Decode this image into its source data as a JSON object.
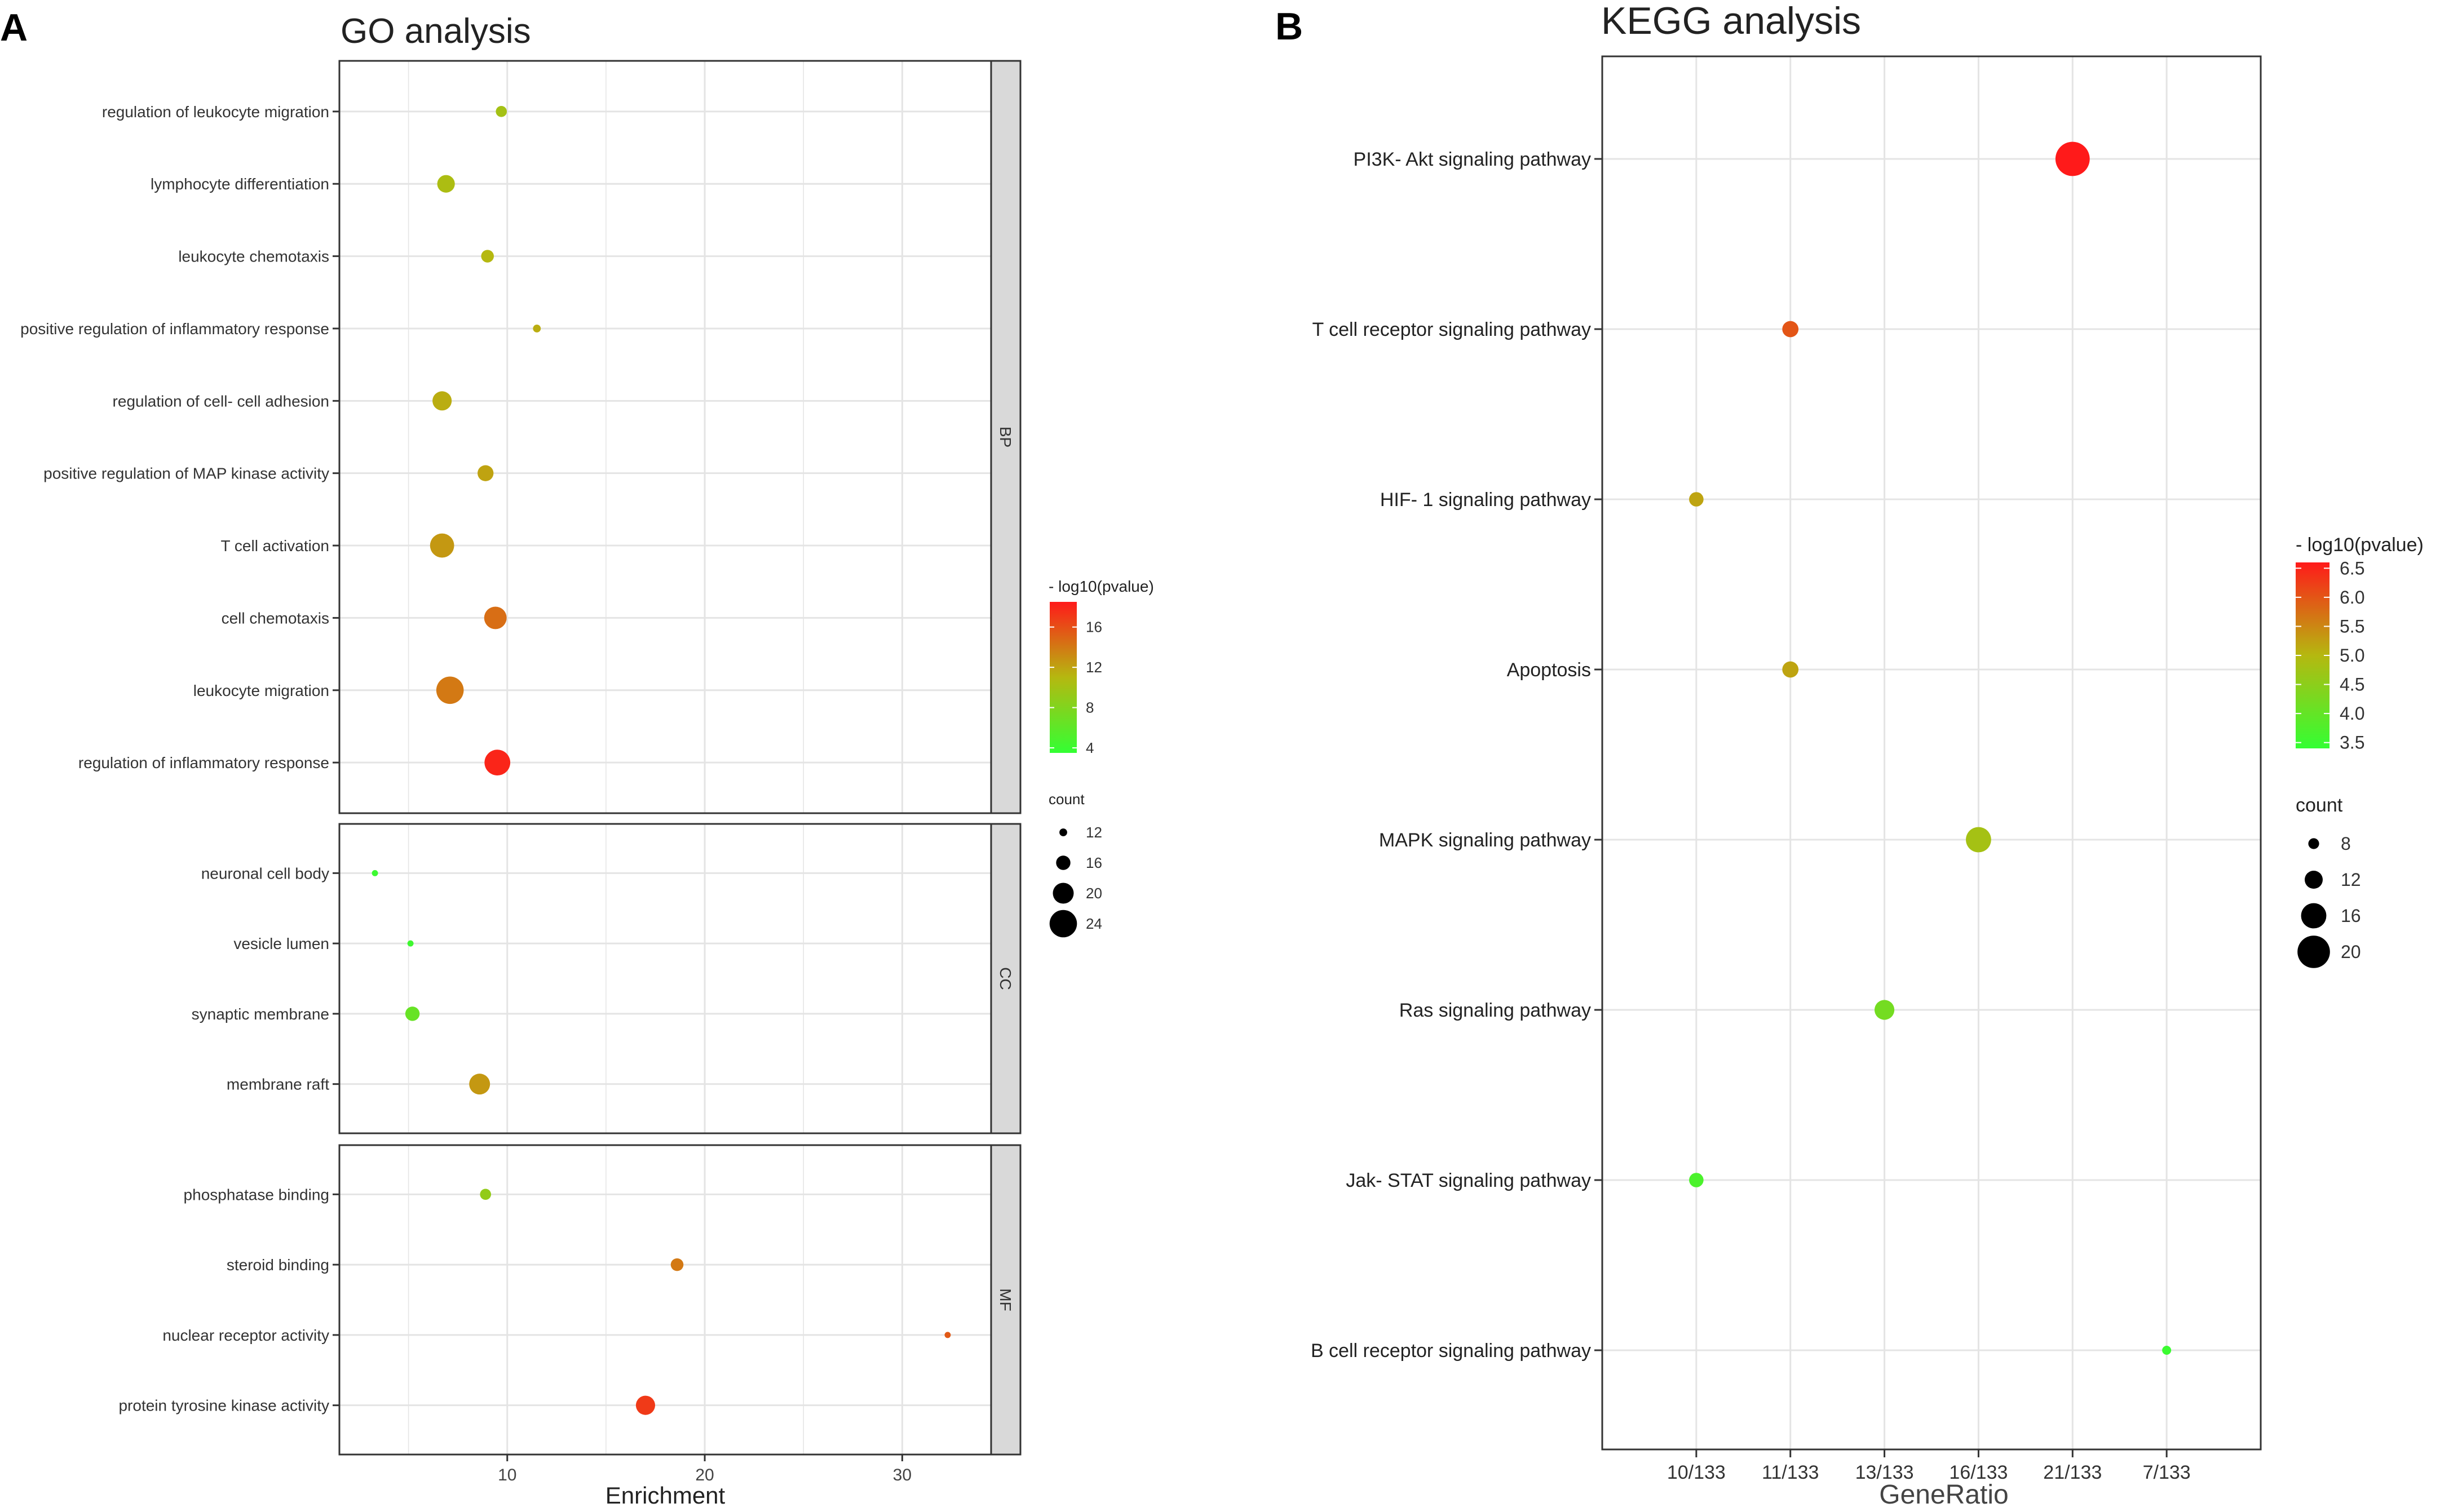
{
  "chart_data": [
    {
      "type": "scatter",
      "panel_label": "A",
      "title": "GO analysis",
      "xlabel": "Enrichment",
      "ylabel": "",
      "xlim": [
        1.5,
        34.5
      ],
      "x_ticks": [
        10,
        20,
        30
      ],
      "grid": true,
      "facets": [
        {
          "strip": "BP",
          "terms": [
            {
              "label": "regulation of leukocyte migration",
              "enrichment": 9.7,
              "count": 14,
              "log10p": 10.0
            },
            {
              "label": "lymphocyte differentiation",
              "enrichment": 6.9,
              "count": 18,
              "log10p": 10.5
            },
            {
              "label": "leukocyte chemotaxis",
              "enrichment": 9.0,
              "count": 15,
              "log10p": 11.0
            },
            {
              "label": "positive regulation of inflammatory response",
              "enrichment": 11.5,
              "count": 12,
              "log10p": 11.5
            },
            {
              "label": "regulation of cell- cell adhesion",
              "enrichment": 6.7,
              "count": 19,
              "log10p": 11.5
            },
            {
              "label": "positive regulation of MAP kinase activity",
              "enrichment": 8.9,
              "count": 17,
              "log10p": 12.0
            },
            {
              "label": "T cell activation",
              "enrichment": 6.7,
              "count": 22,
              "log10p": 12.5
            },
            {
              "label": "cell chemotaxis",
              "enrichment": 9.4,
              "count": 21,
              "log10p": 14.5
            },
            {
              "label": "leukocyte migration",
              "enrichment": 7.1,
              "count": 24,
              "log10p": 14.0
            },
            {
              "label": "regulation of inflammatory response",
              "enrichment": 9.5,
              "count": 23,
              "log10p": 18.0
            }
          ]
        },
        {
          "strip": "CC",
          "terms": [
            {
              "label": "neuronal cell body",
              "enrichment": 3.3,
              "count": 11,
              "log10p": 4.0
            },
            {
              "label": "vesicle lumen",
              "enrichment": 5.1,
              "count": 11,
              "log10p": 4.2
            },
            {
              "label": "synaptic membrane",
              "enrichment": 5.2,
              "count": 16,
              "log10p": 6.5
            },
            {
              "label": "membrane raft",
              "enrichment": 8.6,
              "count": 20,
              "log10p": 12.5
            }
          ]
        },
        {
          "strip": "MF",
          "terms": [
            {
              "label": "phosphatase binding",
              "enrichment": 8.9,
              "count": 14,
              "log10p": 9.0
            },
            {
              "label": "steroid binding",
              "enrichment": 18.6,
              "count": 15,
              "log10p": 14.0
            },
            {
              "label": "nuclear receptor activity",
              "enrichment": 32.3,
              "count": 11,
              "log10p": 15.5
            },
            {
              "label": "protein tyrosine kinase activity",
              "enrichment": 17.0,
              "count": 19,
              "log10p": 17.0
            }
          ]
        }
      ],
      "color_legend": {
        "title": "- log10(pvalue)",
        "min": 3.5,
        "max": 18.5,
        "ticks": [
          "16",
          "12",
          "8",
          "4"
        ]
      },
      "size_legend": {
        "title": "count",
        "values": [
          "12",
          "16",
          "20",
          "24"
        ]
      }
    },
    {
      "type": "scatter",
      "panel_label": "B",
      "title": "KEGG analysis",
      "xlabel": "GeneRatio",
      "ylabel": "",
      "categories": [
        "10/133",
        "11/133",
        "13/133",
        "16/133",
        "21/133",
        "7/133"
      ],
      "grid": true,
      "points": [
        {
          "label": "PI3K- Akt signaling pathway",
          "generatio": "21/133",
          "count": 21,
          "log10p": 6.6
        },
        {
          "label": "T cell receptor signaling pathway",
          "generatio": "11/133",
          "count": 11,
          "log10p": 6.0
        },
        {
          "label": "HIF- 1 signaling pathway",
          "generatio": "10/133",
          "count": 10,
          "log10p": 5.2
        },
        {
          "label": "Apoptosis",
          "generatio": "11/133",
          "count": 11,
          "log10p": 5.2
        },
        {
          "label": "MAPK signaling pathway",
          "generatio": "16/133",
          "count": 16,
          "log10p": 4.8
        },
        {
          "label": "Ras signaling pathway",
          "generatio": "13/133",
          "count": 13,
          "log10p": 4.2
        },
        {
          "label": "Jak- STAT signaling pathway",
          "generatio": "10/133",
          "count": 10,
          "log10p": 3.7
        },
        {
          "label": "B cell receptor signaling pathway",
          "generatio": "7/133",
          "count": 7,
          "log10p": 3.5
        }
      ],
      "color_legend": {
        "title": "- log10(pvalue)",
        "min": 3.4,
        "max": 6.6,
        "ticks": [
          "6.5",
          "6.0",
          "5.5",
          "5.0",
          "4.5",
          "4.0",
          "3.5"
        ]
      },
      "size_legend": {
        "title": "count",
        "values": [
          "8",
          "12",
          "16",
          "20"
        ]
      }
    }
  ]
}
